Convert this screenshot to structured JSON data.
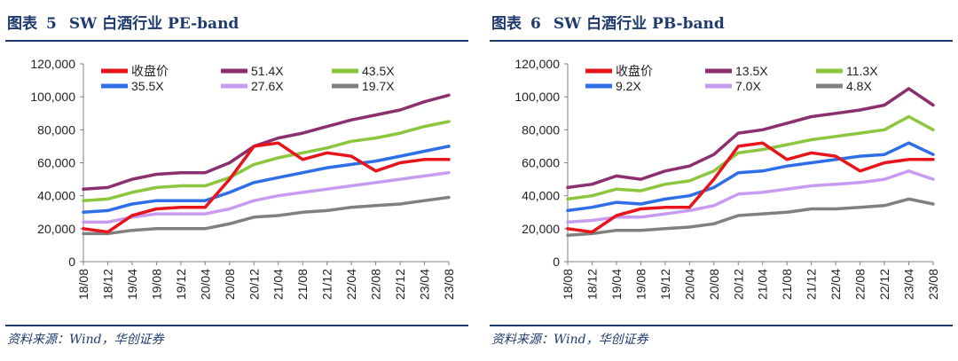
{
  "figures": [
    {
      "label": "图表",
      "number": "5",
      "title": "SW 白酒行业 PE-band",
      "source": "资料来源：Wind，华创证券"
    },
    {
      "label": "图表",
      "number": "6",
      "title": "SW 白酒行业 PB-band",
      "source": "资料来源：Wind，华创证券"
    }
  ],
  "chart_data": [
    {
      "type": "line",
      "title": "SW 白酒行业 PE-band",
      "xlabel": "",
      "ylabel": "",
      "ylim": [
        0,
        120000
      ],
      "yticks": [
        0,
        20000,
        40000,
        60000,
        80000,
        100000,
        120000
      ],
      "ytick_labels": [
        "0",
        "20,000",
        "40,000",
        "60,000",
        "80,000",
        "100,000",
        "120,000"
      ],
      "x": [
        "18/08",
        "18/12",
        "19/04",
        "19/08",
        "19/12",
        "20/04",
        "20/08",
        "20/12",
        "21/04",
        "21/08",
        "21/12",
        "22/04",
        "22/08",
        "22/12",
        "23/04",
        "23/08"
      ],
      "legend_position": "top",
      "series": [
        {
          "name": "收盘价",
          "color": "#e8141c",
          "values": [
            20000,
            18000,
            28000,
            32000,
            33000,
            33000,
            50000,
            70000,
            72000,
            62000,
            66000,
            64000,
            55000,
            60000,
            62000,
            62000
          ]
        },
        {
          "name": "51.4X",
          "color": "#8b2f6e",
          "values": [
            44000,
            45000,
            50000,
            53000,
            54000,
            54000,
            60000,
            70000,
            75000,
            78000,
            82000,
            86000,
            89000,
            92000,
            97000,
            101000
          ]
        },
        {
          "name": "43.5X",
          "color": "#8cc63f",
          "values": [
            37000,
            38000,
            42000,
            45000,
            46000,
            46000,
            51000,
            59000,
            63000,
            66000,
            69000,
            73000,
            75000,
            78000,
            82000,
            85000
          ]
        },
        {
          "name": "35.5X",
          "color": "#2e6fe8",
          "values": [
            30000,
            31000,
            35000,
            37000,
            37000,
            37000,
            42000,
            48000,
            51000,
            54000,
            57000,
            59000,
            61000,
            64000,
            67000,
            70000
          ]
        },
        {
          "name": "27.6X",
          "color": "#c79cf0",
          "values": [
            24000,
            24000,
            27000,
            29000,
            29000,
            29000,
            32000,
            37000,
            40000,
            42000,
            44000,
            46000,
            48000,
            50000,
            52000,
            54000
          ]
        },
        {
          "name": "19.7X",
          "color": "#808080",
          "values": [
            17000,
            17000,
            19000,
            20000,
            20000,
            20000,
            23000,
            27000,
            28000,
            30000,
            31000,
            33000,
            34000,
            35000,
            37000,
            39000
          ]
        }
      ]
    },
    {
      "type": "line",
      "title": "SW 白酒行业 PB-band",
      "xlabel": "",
      "ylabel": "",
      "ylim": [
        0,
        120000
      ],
      "yticks": [
        0,
        20000,
        40000,
        60000,
        80000,
        100000,
        120000
      ],
      "ytick_labels": [
        "0",
        "20,000",
        "40,000",
        "60,000",
        "80,000",
        "100,000",
        "120,000"
      ],
      "x": [
        "18/08",
        "18/12",
        "19/04",
        "19/08",
        "19/12",
        "20/04",
        "20/08",
        "20/12",
        "21/04",
        "21/08",
        "21/12",
        "22/04",
        "22/08",
        "22/12",
        "23/04",
        "23/08"
      ],
      "legend_position": "top",
      "series": [
        {
          "name": "收盘价",
          "color": "#e8141c",
          "values": [
            20000,
            18000,
            28000,
            32000,
            33000,
            33000,
            50000,
            70000,
            72000,
            62000,
            66000,
            64000,
            55000,
            60000,
            62000,
            62000
          ]
        },
        {
          "name": "13.5X",
          "color": "#8b2f6e",
          "values": [
            45000,
            47000,
            52000,
            50000,
            55000,
            58000,
            65000,
            78000,
            80000,
            84000,
            88000,
            90000,
            92000,
            95000,
            105000,
            95000
          ]
        },
        {
          "name": "11.3X",
          "color": "#8cc63f",
          "values": [
            38000,
            40000,
            44000,
            43000,
            47000,
            49000,
            55000,
            66000,
            68000,
            71000,
            74000,
            76000,
            78000,
            80000,
            88000,
            80000
          ]
        },
        {
          "name": "9.2X",
          "color": "#2e6fe8",
          "values": [
            31000,
            33000,
            36000,
            35000,
            38000,
            40000,
            45000,
            54000,
            55000,
            58000,
            60000,
            62000,
            64000,
            65000,
            72000,
            65000
          ]
        },
        {
          "name": "7.0X",
          "color": "#c79cf0",
          "values": [
            24000,
            25000,
            27000,
            27000,
            29000,
            31000,
            34000,
            41000,
            42000,
            44000,
            46000,
            47000,
            48000,
            50000,
            55000,
            50000
          ]
        },
        {
          "name": "4.8X",
          "color": "#808080",
          "values": [
            16000,
            17000,
            19000,
            19000,
            20000,
            21000,
            23000,
            28000,
            29000,
            30000,
            32000,
            32000,
            33000,
            34000,
            38000,
            35000
          ]
        }
      ]
    }
  ]
}
